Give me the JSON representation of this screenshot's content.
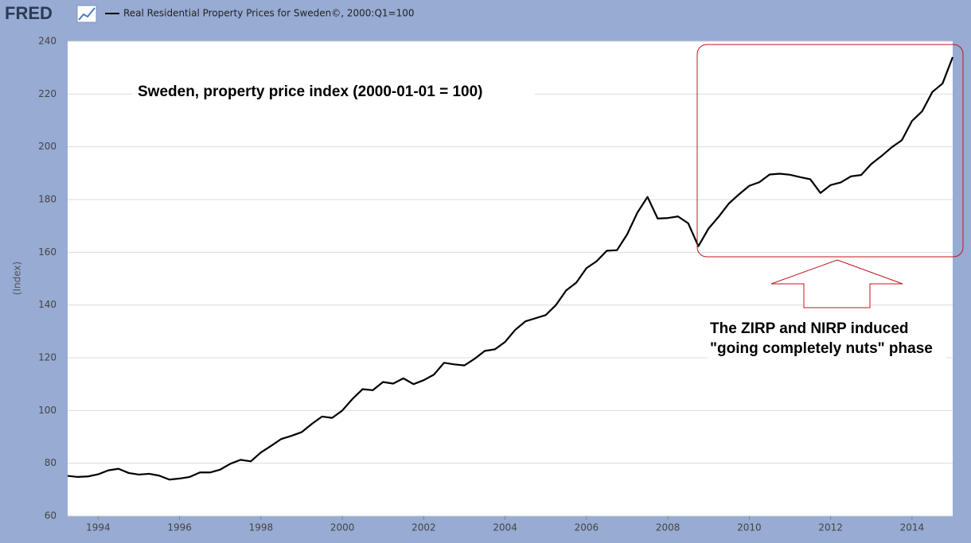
{
  "chart_data": {
    "type": "line",
    "logo": "FRED",
    "title": "Real Residential Property Prices for Sweden©, 2000:Q1=100",
    "y_label": "(Index)",
    "annotations": [
      "Sweden, property price index (2000-01-01 = 100)",
      "The ZIRP and NIRP induced",
      "\"going completely nuts\" phase"
    ],
    "x": [
      1993.25,
      1993.5,
      1993.75,
      1994,
      1994.25,
      1994.5,
      1994.75,
      1995,
      1995.25,
      1995.5,
      1995.75,
      1996,
      1996.25,
      1996.5,
      1996.75,
      1997,
      1997.25,
      1997.5,
      1997.75,
      1998,
      1998.25,
      1998.5,
      1998.75,
      1999,
      1999.25,
      1999.5,
      1999.75,
      2000,
      2000.25,
      2000.5,
      2000.75,
      2001,
      2001.25,
      2001.5,
      2001.75,
      2002,
      2002.25,
      2002.5,
      2002.75,
      2003,
      2003.25,
      2003.5,
      2003.75,
      2004,
      2004.25,
      2004.5,
      2004.75,
      2005,
      2005.25,
      2005.5,
      2005.75,
      2006,
      2006.25,
      2006.5,
      2006.75,
      2007,
      2007.25,
      2007.5,
      2007.75,
      2008,
      2008.25,
      2008.5,
      2008.75,
      2009,
      2009.25,
      2009.5,
      2009.75,
      2010,
      2010.25,
      2010.5,
      2010.75,
      2011,
      2011.25,
      2011.5,
      2011.75,
      2012,
      2012.25,
      2012.5,
      2012.75,
      2013,
      2013.25,
      2013.5,
      2013.75,
      2014,
      2014.25,
      2014.5,
      2014.75,
      2015
    ],
    "series": [
      {
        "name": "Real Residential Property Prices for Sweden©, 2000:Q1=100",
        "color": "#000000",
        "values": [
          75.2,
          74.8,
          75.0,
          75.8,
          77.3,
          77.9,
          76.3,
          75.7,
          76.0,
          75.3,
          73.8,
          74.2,
          74.8,
          76.5,
          76.5,
          77.6,
          79.8,
          81.3,
          80.7,
          84.1,
          86.6,
          89.2,
          90.4,
          91.8,
          94.9,
          97.7,
          97.2,
          100.0,
          104.4,
          108.1,
          107.7,
          110.8,
          110.2,
          112.2,
          110.0,
          111.5,
          113.6,
          118.1,
          117.5,
          117.1,
          119.6,
          122.6,
          123.2,
          126.0,
          130.6,
          133.8,
          135.0,
          136.2,
          140.0,
          145.5,
          148.5,
          154.0,
          156.6,
          160.6,
          160.8,
          166.8,
          175.0,
          181.0,
          172.8,
          173.0,
          173.6,
          171.0,
          162.3,
          169.0,
          173.5,
          178.5,
          182.0,
          185.2,
          186.6,
          189.5,
          189.8,
          189.4,
          188.5,
          187.7,
          182.5,
          185.5,
          186.5,
          188.8,
          189.3,
          193.5,
          196.5,
          199.8,
          202.5,
          209.8,
          213.5,
          220.8,
          224.0,
          234.0
        ]
      }
    ],
    "xlim": [
      1993.25,
      2015
    ],
    "xticks": [
      1994,
      1996,
      1998,
      2000,
      2002,
      2004,
      2006,
      2008,
      2010,
      2012,
      2014
    ],
    "ylim": [
      60,
      240
    ],
    "yticks": [
      60,
      80,
      100,
      120,
      140,
      160,
      180,
      200,
      220,
      240
    ],
    "grid": true
  }
}
